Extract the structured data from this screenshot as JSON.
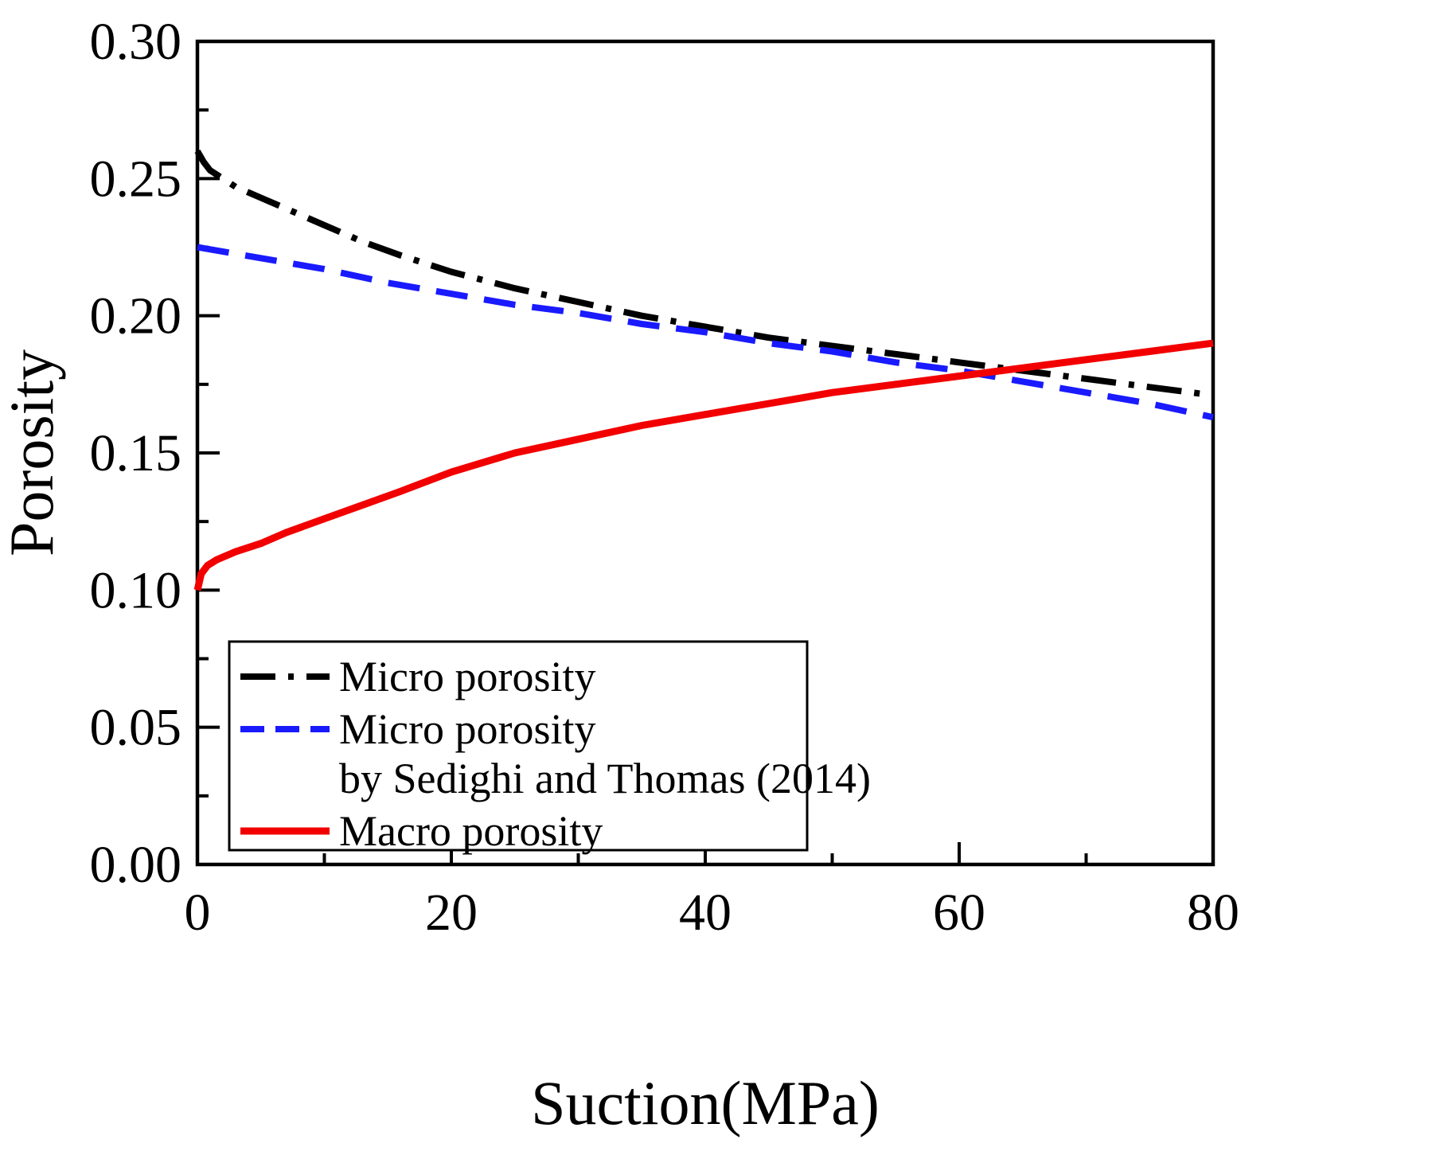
{
  "figure": {
    "background": "#ffffff",
    "frame_color": "#000000"
  },
  "chart_data": {
    "type": "line",
    "title": "",
    "xlabel": "Suction(MPa)",
    "ylabel": "Porosity",
    "xlim": [
      0,
      80
    ],
    "ylim": [
      0,
      0.3
    ],
    "grid": false,
    "legend_position": "bottom-left",
    "xticks": {
      "values": [
        0,
        20,
        40,
        60,
        80
      ],
      "labels": [
        "0",
        "20",
        "40",
        "60",
        "80"
      ],
      "minor": [
        10,
        30,
        50,
        70
      ]
    },
    "yticks": {
      "values": [
        0.0,
        0.05,
        0.1,
        0.15,
        0.2,
        0.25,
        0.3
      ],
      "labels": [
        "0.00",
        "0.05",
        "0.10",
        "0.15",
        "0.20",
        "0.25",
        "0.30"
      ],
      "minor": [
        0.025,
        0.075,
        0.125,
        0.175,
        0.225,
        0.275
      ]
    },
    "series": [
      {
        "name": "Micro porosity",
        "color": "#000000",
        "linestyle": "dashdot",
        "width": 8,
        "x": [
          0,
          0.5,
          1,
          2,
          3,
          5,
          7,
          10,
          13,
          16,
          20,
          25,
          30,
          35,
          40,
          45,
          50,
          55,
          60,
          65,
          70,
          75,
          80
        ],
        "y": [
          0.26,
          0.256,
          0.253,
          0.25,
          0.247,
          0.243,
          0.239,
          0.233,
          0.227,
          0.222,
          0.216,
          0.21,
          0.205,
          0.2,
          0.196,
          0.192,
          0.189,
          0.186,
          0.183,
          0.18,
          0.177,
          0.174,
          0.171
        ]
      },
      {
        "name": "Micro porosity by Sedighi and Thomas (2014)",
        "color": "#1a1aff",
        "linestyle": "dashed",
        "width": 8,
        "x": [
          0,
          5,
          10,
          15,
          20,
          25,
          30,
          35,
          40,
          45,
          50,
          55,
          60,
          65,
          70,
          75,
          80
        ],
        "y": [
          0.225,
          0.221,
          0.217,
          0.212,
          0.208,
          0.204,
          0.201,
          0.197,
          0.194,
          0.19,
          0.187,
          0.183,
          0.18,
          0.176,
          0.172,
          0.168,
          0.163
        ]
      },
      {
        "name": "Macro porosity",
        "color": "#f20000",
        "linestyle": "solid",
        "width": 9,
        "x": [
          0,
          0.3,
          0.8,
          1.5,
          3,
          5,
          7,
          10,
          13,
          16,
          20,
          25,
          30,
          35,
          40,
          45,
          50,
          55,
          60,
          65,
          70,
          75,
          80
        ],
        "y": [
          0.1,
          0.106,
          0.109,
          0.111,
          0.114,
          0.117,
          0.121,
          0.126,
          0.131,
          0.136,
          0.143,
          0.15,
          0.155,
          0.16,
          0.164,
          0.168,
          0.172,
          0.175,
          0.178,
          0.181,
          0.184,
          0.187,
          0.19
        ]
      }
    ],
    "legend": {
      "entries": [
        {
          "series": 0,
          "lines": [
            "Micro porosity"
          ]
        },
        {
          "series": 1,
          "lines": [
            "Micro porosity",
            "by Sedighi and Thomas (2014)"
          ]
        },
        {
          "series": 2,
          "lines": [
            "Macro porosity"
          ]
        }
      ]
    }
  }
}
